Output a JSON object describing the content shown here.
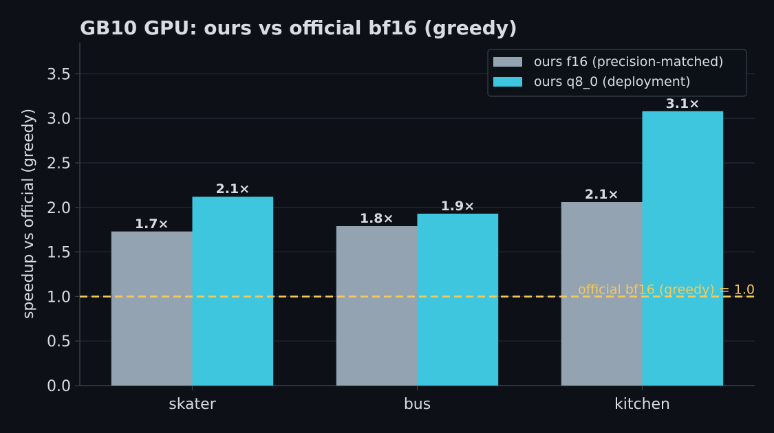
{
  "chart_data": {
    "type": "bar",
    "title": "GB10 GPU: ours vs official bf16 (greedy)",
    "xlabel": "",
    "ylabel": "speedup vs official (greedy)",
    "categories": [
      "skater",
      "bus",
      "kitchen"
    ],
    "series": [
      {
        "name": "ours f16 (precision-matched)",
        "values": [
          1.73,
          1.79,
          2.06
        ],
        "labels": [
          "1.7×",
          "1.8×",
          "2.1×"
        ],
        "color": "#94a3b2"
      },
      {
        "name": "ours q8_0 (deployment)",
        "values": [
          2.12,
          1.93,
          3.08
        ],
        "labels": [
          "2.1×",
          "1.9×",
          "3.1×"
        ],
        "color": "#3dc6de"
      }
    ],
    "ylim": [
      0,
      3.85
    ],
    "yticks": [
      0.0,
      0.5,
      1.0,
      1.5,
      2.0,
      2.5,
      3.0,
      3.5
    ],
    "ytick_labels": [
      "0.0",
      "0.5",
      "1.0",
      "1.5",
      "2.0",
      "2.5",
      "3.0",
      "3.5"
    ],
    "reference_line": {
      "value": 1.0,
      "label": "official bf16 (greedy) = 1.0",
      "color": "#f5c95a",
      "style": "dashed"
    },
    "grid": "horizontal",
    "legend_position": "top-right",
    "colors": {
      "background": "#0d1017",
      "grid": "#252a33",
      "axis": "#3a4049",
      "text": "#d9dce2"
    }
  }
}
